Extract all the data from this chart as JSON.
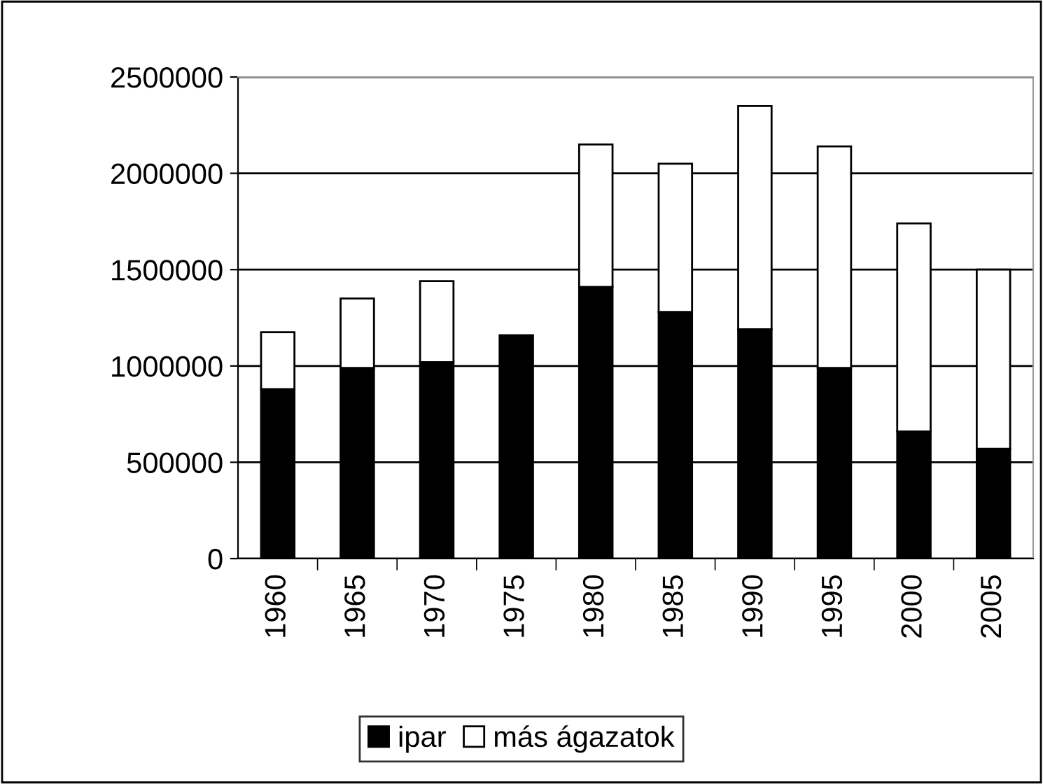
{
  "chart_data": {
    "type": "bar",
    "stacked": true,
    "categories": [
      "1960",
      "1965",
      "1970",
      "1975",
      "1980",
      "1985",
      "1990",
      "1995",
      "2000",
      "2005"
    ],
    "series": [
      {
        "name": "ipar",
        "color": "#000000",
        "values": [
          880000,
          990000,
          1020000,
          1160000,
          1410000,
          1280000,
          1190000,
          990000,
          660000,
          570000
        ]
      },
      {
        "name": "más ágazatok",
        "color": "#ffffff",
        "values": [
          295000,
          360000,
          420000,
          null,
          740000,
          770000,
          1160000,
          1150000,
          1080000,
          930000
        ]
      }
    ],
    "ylim": [
      0,
      2500000
    ],
    "yticks": [
      0,
      500000,
      1000000,
      1500000,
      2000000,
      2500000
    ],
    "grid": "y",
    "legend": "bottom"
  }
}
